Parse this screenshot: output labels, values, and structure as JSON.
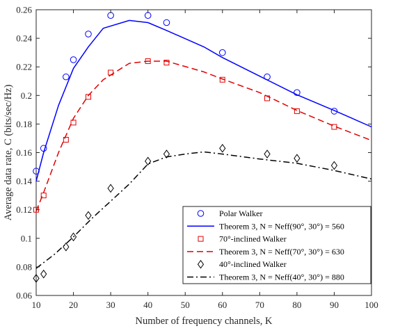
{
  "chart_data": {
    "type": "line",
    "xlabel": "Number of frequency channels, K",
    "ylabel": "Average data rate, C (bits/sec/Hz)",
    "xlim": [
      10,
      100
    ],
    "ylim": [
      0.06,
      0.26
    ],
    "xticks": [
      "10",
      "20",
      "30",
      "40",
      "50",
      "60",
      "70",
      "80",
      "90",
      "100"
    ],
    "yticks": [
      "0.06",
      "0.08",
      "0.1",
      "0.12",
      "0.14",
      "0.16",
      "0.18",
      "0.2",
      "0.22",
      "0.24",
      "0.26"
    ],
    "grid": false,
    "legend_position": "bottom-right",
    "series": [
      {
        "name": "Polar Walker",
        "kind": "markers",
        "marker": "circle",
        "color": "#0000ff",
        "x": [
          10,
          12,
          18,
          20,
          24,
          30,
          40,
          45,
          60,
          72,
          80,
          90
        ],
        "y": [
          0.147,
          0.163,
          0.213,
          0.225,
          0.243,
          0.256,
          0.256,
          0.251,
          0.23,
          0.213,
          0.202,
          0.189
        ]
      },
      {
        "name": "Theorem 3, N = Neff(90°, 30°) = 560",
        "kind": "line",
        "dash": "solid",
        "color": "#0000ff",
        "x": [
          10,
          12,
          16,
          20,
          24,
          28,
          35,
          40,
          45,
          55,
          60,
          70,
          80,
          90,
          100
        ],
        "y": [
          0.14,
          0.16,
          0.193,
          0.219,
          0.234,
          0.247,
          0.2525,
          0.251,
          0.2455,
          0.234,
          0.2265,
          0.2135,
          0.2005,
          0.1895,
          0.178
        ]
      },
      {
        "name": "70°-inclined Walker",
        "kind": "markers",
        "marker": "square",
        "color": "#e00000",
        "x": [
          10,
          12,
          18,
          20,
          24,
          30,
          40,
          45,
          60,
          72,
          80,
          90
        ],
        "y": [
          0.12,
          0.13,
          0.169,
          0.181,
          0.199,
          0.216,
          0.224,
          0.223,
          0.211,
          0.198,
          0.189,
          0.178
        ]
      },
      {
        "name": "Theorem 3, N = Neff(70°, 30°) = 630",
        "kind": "line",
        "dash": "dashed",
        "color": "#e00000",
        "x": [
          10,
          12,
          16,
          20,
          24,
          28,
          35,
          40,
          45,
          55,
          60,
          70,
          80,
          90,
          100
        ],
        "y": [
          0.119,
          0.132,
          0.16,
          0.184,
          0.2,
          0.211,
          0.2225,
          0.224,
          0.224,
          0.2165,
          0.2115,
          0.202,
          0.1895,
          0.1785,
          0.1685
        ]
      },
      {
        "name": "40°-inclined Walker",
        "kind": "markers",
        "marker": "diamond",
        "color": "#000000",
        "x": [
          10,
          12,
          18,
          20,
          24,
          30,
          40,
          45,
          60,
          72,
          80,
          90
        ],
        "y": [
          0.072,
          0.075,
          0.094,
          0.101,
          0.116,
          0.135,
          0.154,
          0.159,
          0.163,
          0.159,
          0.156,
          0.151
        ]
      },
      {
        "name": "Theorem 3, N = Neff(40°, 30°) = 880",
        "kind": "line",
        "dash": "dashdot",
        "color": "#000000",
        "x": [
          10,
          15,
          20,
          25,
          30,
          35,
          40,
          45,
          50,
          55,
          60,
          70,
          80,
          90,
          100
        ],
        "y": [
          0.079,
          0.089,
          0.101,
          0.114,
          0.126,
          0.138,
          0.152,
          0.157,
          0.159,
          0.1605,
          0.159,
          0.1555,
          0.1525,
          0.1475,
          0.1415
        ]
      }
    ],
    "legend": [
      "Polar Walker",
      "Theorem 3, N = Neff(90°, 30°) = 560",
      "70°-inclined Walker",
      "Theorem 3, N = Neff(70°, 30°) = 630",
      "40°-inclined Walker",
      "Theorem 3, N = Neff(40°, 30°) = 880"
    ]
  }
}
